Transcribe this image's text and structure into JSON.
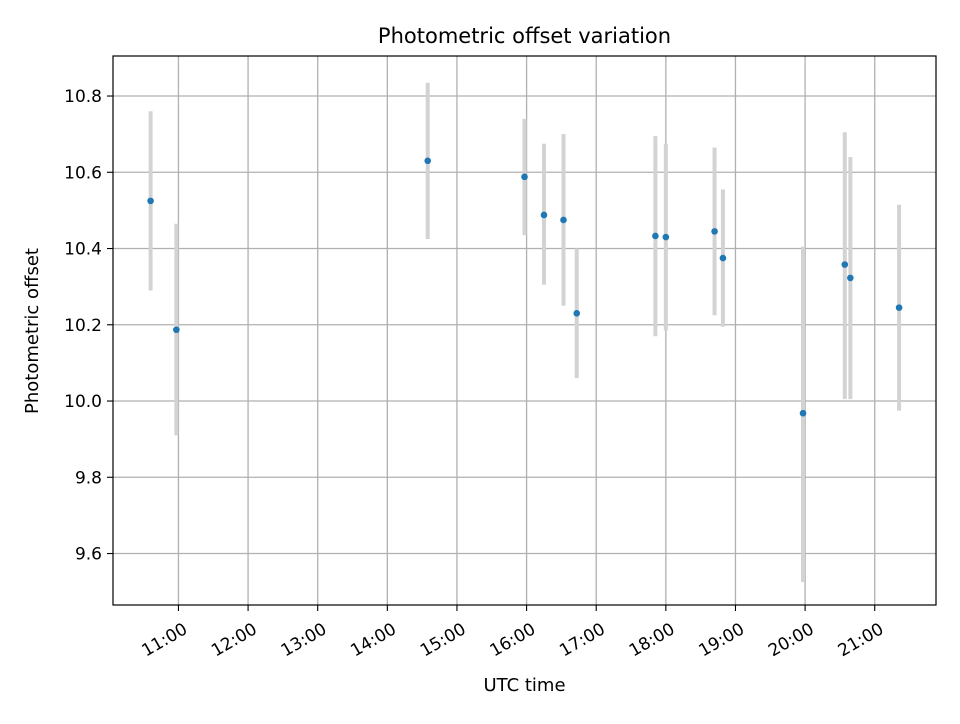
{
  "chart_data": {
    "type": "scatter",
    "title": "Photometric offset variation",
    "xlabel": "UTC time",
    "ylabel": "Photometric offset",
    "x_unit": "hours UTC",
    "xlim": [
      10.06,
      21.88
    ],
    "ylim": [
      9.465,
      10.905
    ],
    "grid": true,
    "x_ticks": [
      {
        "value": 11,
        "label": "11:00"
      },
      {
        "value": 12,
        "label": "12:00"
      },
      {
        "value": 13,
        "label": "13:00"
      },
      {
        "value": 14,
        "label": "14:00"
      },
      {
        "value": 15,
        "label": "15:00"
      },
      {
        "value": 16,
        "label": "16:00"
      },
      {
        "value": 17,
        "label": "17:00"
      },
      {
        "value": 18,
        "label": "18:00"
      },
      {
        "value": 19,
        "label": "19:00"
      },
      {
        "value": 20,
        "label": "20:00"
      },
      {
        "value": 21,
        "label": "21:00"
      }
    ],
    "y_ticks": [
      {
        "value": 9.6,
        "label": "9.6"
      },
      {
        "value": 9.8,
        "label": "9.8"
      },
      {
        "value": 10.0,
        "label": "10.0"
      },
      {
        "value": 10.2,
        "label": "10.2"
      },
      {
        "value": 10.4,
        "label": "10.4"
      },
      {
        "value": 10.6,
        "label": "10.6"
      },
      {
        "value": 10.8,
        "label": "10.8"
      }
    ],
    "points": [
      {
        "x": 10.6,
        "y": 10.525,
        "ylow": 10.29,
        "yhigh": 10.76
      },
      {
        "x": 10.97,
        "y": 10.187,
        "ylow": 9.91,
        "yhigh": 10.465
      },
      {
        "x": 14.58,
        "y": 10.63,
        "ylow": 10.425,
        "yhigh": 10.835
      },
      {
        "x": 15.97,
        "y": 10.588,
        "ylow": 10.435,
        "yhigh": 10.74
      },
      {
        "x": 16.25,
        "y": 10.488,
        "ylow": 10.305,
        "yhigh": 10.675
      },
      {
        "x": 16.53,
        "y": 10.475,
        "ylow": 10.25,
        "yhigh": 10.7
      },
      {
        "x": 16.72,
        "y": 10.23,
        "ylow": 10.06,
        "yhigh": 10.4
      },
      {
        "x": 17.85,
        "y": 10.433,
        "ylow": 10.17,
        "yhigh": 10.695
      },
      {
        "x": 18.0,
        "y": 10.43,
        "ylow": 10.185,
        "yhigh": 10.675
      },
      {
        "x": 18.7,
        "y": 10.445,
        "ylow": 10.225,
        "yhigh": 10.665
      },
      {
        "x": 18.82,
        "y": 10.375,
        "ylow": 10.195,
        "yhigh": 10.555
      },
      {
        "x": 19.97,
        "y": 9.968,
        "ylow": 9.525,
        "yhigh": 10.405
      },
      {
        "x": 20.57,
        "y": 10.358,
        "ylow": 10.005,
        "yhigh": 10.705
      },
      {
        "x": 20.65,
        "y": 10.323,
        "ylow": 10.005,
        "yhigh": 10.64
      },
      {
        "x": 21.35,
        "y": 10.245,
        "ylow": 9.975,
        "yhigh": 10.515
      }
    ],
    "colors": {
      "point": "#1f77b4",
      "errorbar": "#d3d3d3",
      "grid": "#b0b0b0",
      "axes": "#000000"
    }
  }
}
